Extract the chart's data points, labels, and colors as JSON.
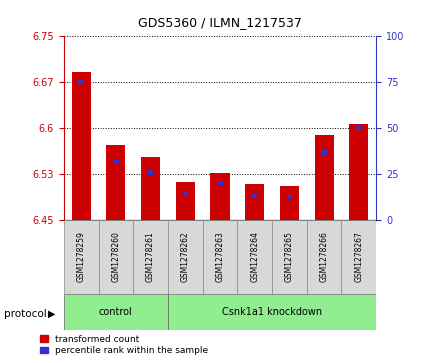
{
  "title": "GDS5360 / ILMN_1217537",
  "samples": [
    "GSM1278259",
    "GSM1278260",
    "GSM1278261",
    "GSM1278262",
    "GSM1278263",
    "GSM1278264",
    "GSM1278265",
    "GSM1278266",
    "GSM1278267"
  ],
  "red_values": [
    6.692,
    6.572,
    6.553,
    6.511,
    6.527,
    6.508,
    6.505,
    6.588,
    6.607
  ],
  "blue_values": [
    6.675,
    6.545,
    6.527,
    6.493,
    6.51,
    6.49,
    6.487,
    6.56,
    6.6
  ],
  "blue_heights": [
    0.006,
    0.006,
    0.006,
    0.006,
    0.006,
    0.006,
    0.006,
    0.006,
    0.006
  ],
  "ylim_left": [
    6.45,
    6.75
  ],
  "ylim_right": [
    0,
    100
  ],
  "yticks_left": [
    6.45,
    6.525,
    6.6,
    6.675,
    6.75
  ],
  "yticks_right": [
    0,
    25,
    50,
    75,
    100
  ],
  "red_color": "#cc0000",
  "blue_color": "#3333cc",
  "control_color": "#90ee90",
  "legend_red": "transformed count",
  "legend_blue": "percentile rank within the sample",
  "base_value": 6.45,
  "grid_color": "black"
}
